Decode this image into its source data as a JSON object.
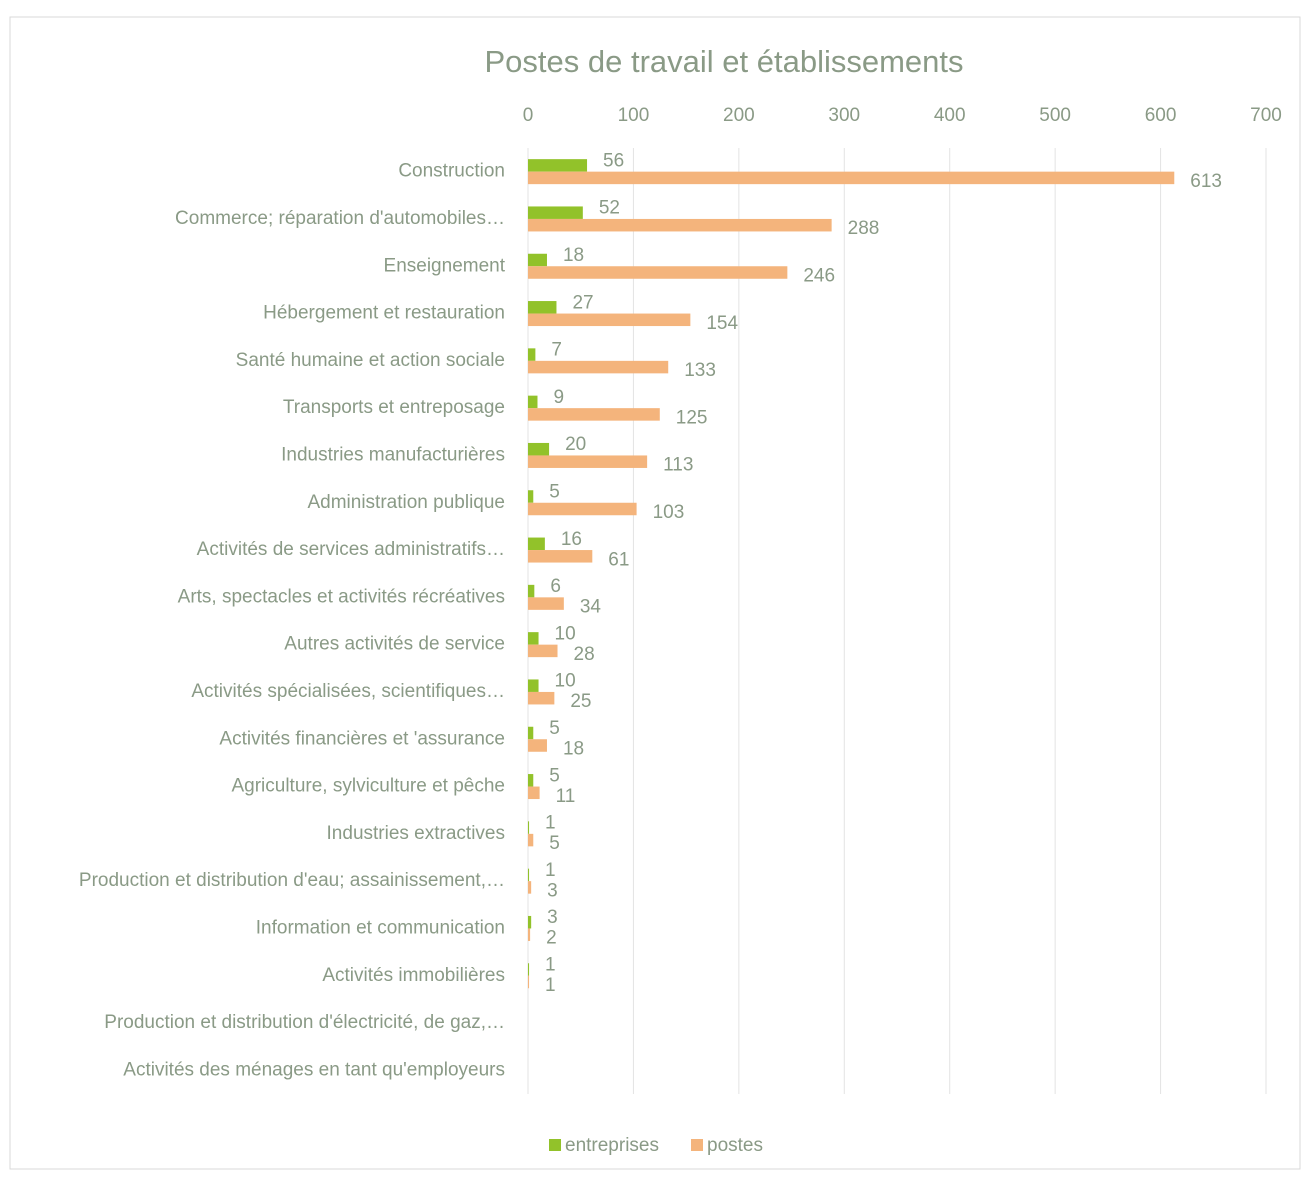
{
  "chart_data": {
    "type": "hbar",
    "title": "Postes de travail et établissements",
    "categories": [
      "Construction",
      "Commerce; réparation d'automobiles…",
      "Enseignement",
      "Hébergement et restauration",
      "Santé humaine et action sociale",
      "Transports et entreposage",
      "Industries manufacturières",
      "Administration publique",
      "Activités de services administratifs…",
      "Arts, spectacles et activités récréatives",
      "Autres activités de service",
      "Activités spécialisées, scientifiques…",
      "Activités financières et 'assurance",
      "Agriculture, sylviculture et pêche",
      "Industries extractives",
      "Production et distribution d'eau; assainissement,…",
      "Information et communication",
      "Activités immobilières",
      "Production et distribution d'électricité, de gaz,…",
      "Activités des ménages en tant qu'employeurs"
    ],
    "series": [
      {
        "name": "entreprises",
        "color": "#92c22a",
        "values": [
          56,
          52,
          18,
          27,
          7,
          9,
          20,
          5,
          16,
          6,
          10,
          10,
          5,
          5,
          1,
          1,
          3,
          1,
          null,
          null
        ]
      },
      {
        "name": "postes",
        "color": "#f4b47c",
        "values": [
          613,
          288,
          246,
          154,
          133,
          125,
          113,
          103,
          61,
          34,
          28,
          25,
          18,
          11,
          5,
          3,
          2,
          1,
          null,
          null
        ]
      }
    ],
    "xlim": [
      0,
      700
    ],
    "xticks": [
      0,
      100,
      200,
      300,
      400,
      500,
      600,
      700
    ],
    "grid": true,
    "legend": "bottom"
  }
}
